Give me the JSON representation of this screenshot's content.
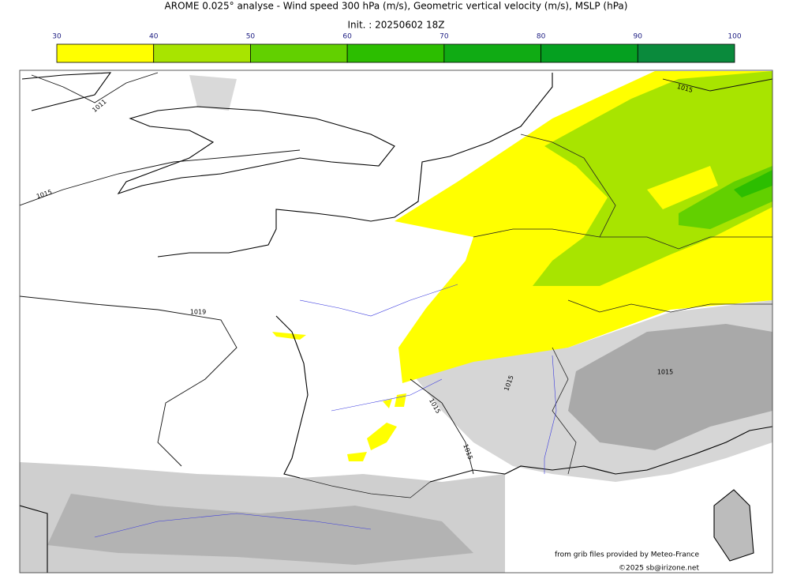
{
  "header": {
    "title": "AROME 0.025° analyse - Wind speed 300 hPa (m/s), Geometric vertical velocity (m/s), MSLP (hPa)",
    "init": "Init. : 20250602 18Z"
  },
  "colorbar": {
    "ticks": [
      30,
      40,
      50,
      60,
      70,
      80,
      90,
      100
    ],
    "colors": [
      "#ffff00",
      "#a8e400",
      "#62d000",
      "#2cbe00",
      "#10ab14",
      "#05a020",
      "#0a8a3c",
      "#077a50"
    ]
  },
  "isobar_labels": [
    "1011",
    "1015",
    "1019",
    "1015",
    "1015",
    "1015",
    "1015",
    "1015"
  ],
  "credits": {
    "source": "from grib files provided by Meteo-France",
    "copyright": "©2025 sb@irizone.net"
  }
}
